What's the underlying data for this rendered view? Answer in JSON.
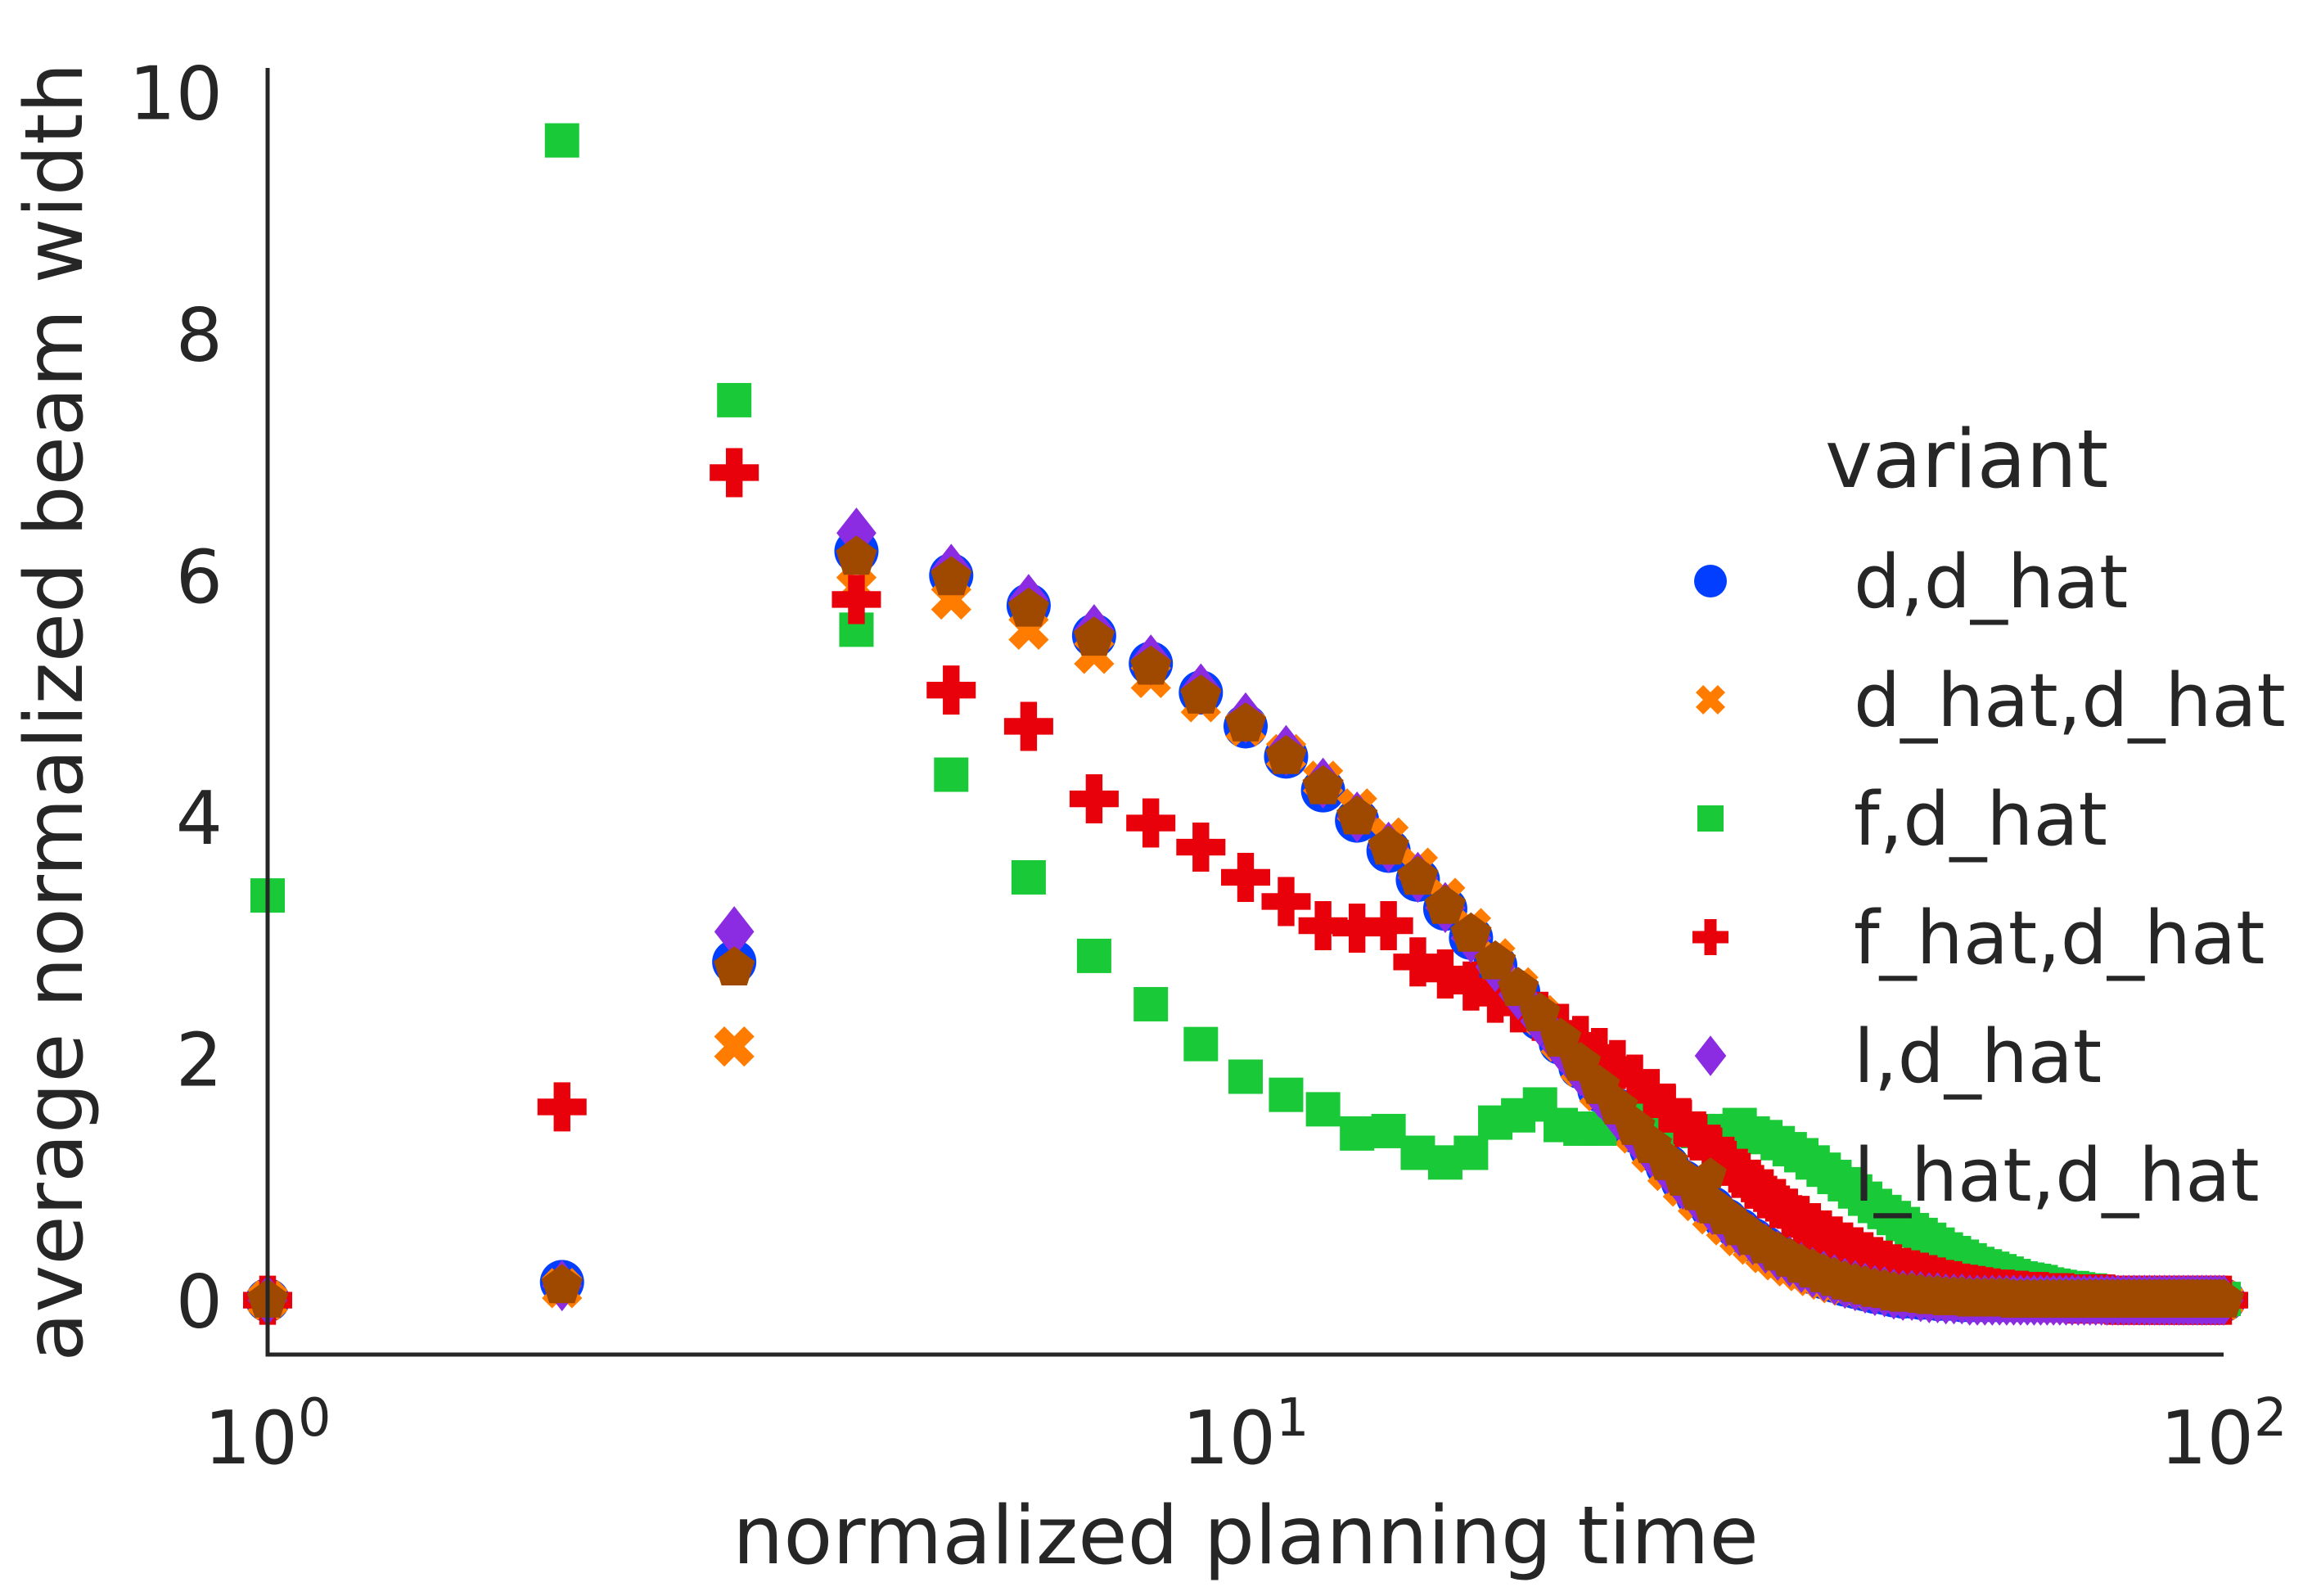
{
  "chart_data": {
    "type": "scatter",
    "xlabel": "normalized planning time",
    "ylabel": "average normalized beam width",
    "xscale": "log",
    "xlim": [
      1,
      100
    ],
    "ylim": [
      -0.45,
      10.2
    ],
    "x_ticks": [
      {
        "value": 1,
        "base": "10",
        "exp": "0"
      },
      {
        "value": 10,
        "base": "10",
        "exp": "1"
      },
      {
        "value": 100,
        "base": "10",
        "exp": "2"
      }
    ],
    "y_ticks": [
      0,
      2,
      4,
      6,
      8,
      10
    ],
    "grid": false,
    "legend": {
      "title": "variant",
      "placement": "right"
    },
    "x": [
      1,
      2,
      3,
      4,
      5,
      6,
      7,
      8,
      9,
      10,
      11,
      12,
      13,
      14,
      15,
      16,
      17,
      18,
      19,
      20,
      21,
      22,
      23,
      24,
      25,
      26,
      27,
      28,
      29,
      30,
      31,
      32,
      33,
      34,
      35,
      36,
      37,
      38,
      39,
      40,
      41,
      42,
      43,
      44,
      45,
      46,
      47,
      48,
      49,
      50,
      51,
      52,
      53,
      54,
      55,
      56,
      57,
      58,
      59,
      60,
      61,
      62,
      63,
      64,
      65,
      66,
      67,
      68,
      69,
      70,
      71,
      72,
      73,
      74,
      75,
      76,
      77,
      78,
      79,
      80,
      81,
      82,
      83,
      84,
      85,
      86,
      87,
      88,
      89,
      90,
      91,
      92,
      93,
      94,
      95,
      96,
      97,
      98,
      99,
      100
    ],
    "series": [
      {
        "name": "d,d_hat",
        "color": "#023eff",
        "marker": "circle",
        "values": [
          0.0,
          0.15,
          2.8,
          6.2,
          6.0,
          5.75,
          5.5,
          5.27,
          5.03,
          4.75,
          4.5,
          4.22,
          3.97,
          3.72,
          3.48,
          3.24,
          3.0,
          2.77,
          2.55,
          2.33,
          2.13,
          1.93,
          1.74,
          1.57,
          1.4,
          1.25,
          1.11,
          0.98,
          0.86,
          0.76,
          0.66,
          0.58,
          0.5,
          0.43,
          0.37,
          0.32,
          0.27,
          0.23,
          0.19,
          0.16,
          0.13,
          0.11,
          0.09,
          0.07,
          0.06,
          0.04,
          0.03,
          0.03,
          0.02,
          0.02,
          0.01,
          0.01,
          0.01,
          0.0,
          0.0,
          0.0,
          0.0,
          0.0,
          0.0,
          0.0,
          0.0,
          0.0,
          0.0,
          0.0,
          0.0,
          0.0,
          0.0,
          0.0,
          0.0,
          0.0,
          0.0,
          0.0,
          0.0,
          0.0,
          0.0,
          0.0,
          0.0,
          0.0,
          0.0,
          0.0,
          0.0,
          0.0,
          0.0,
          0.0,
          0.0,
          0.0,
          0.0,
          0.0,
          0.0,
          0.0,
          0.0,
          0.0,
          0.0,
          0.0,
          0.0,
          0.0,
          0.0,
          0.0,
          0.0,
          0.0
        ]
      },
      {
        "name": "d_hat,d_hat",
        "color": "#ff7c00",
        "marker": "x",
        "values": [
          0.0,
          0.1,
          2.1,
          5.9,
          5.8,
          5.55,
          5.35,
          5.15,
          4.95,
          4.75,
          4.52,
          4.3,
          4.07,
          3.83,
          3.58,
          3.33,
          3.08,
          2.83,
          2.59,
          2.36,
          2.14,
          1.93,
          1.73,
          1.55,
          1.38,
          1.22,
          1.07,
          0.94,
          0.82,
          0.71,
          0.62,
          0.53,
          0.46,
          0.39,
          0.33,
          0.28,
          0.24,
          0.2,
          0.17,
          0.14,
          0.12,
          0.1,
          0.08,
          0.06,
          0.05,
          0.04,
          0.03,
          0.03,
          0.02,
          0.02,
          0.01,
          0.01,
          0.01,
          0.0,
          0.0,
          0.0,
          0.0,
          0.0,
          0.0,
          0.0,
          0.0,
          0.0,
          0.0,
          0.0,
          0.0,
          0.0,
          0.0,
          0.0,
          0.0,
          0.0,
          0.0,
          0.0,
          0.0,
          0.0,
          0.0,
          0.0,
          0.0,
          0.0,
          0.0,
          0.0,
          0.0,
          0.0,
          0.0,
          0.0,
          0.0,
          0.0,
          0.0,
          0.0,
          0.0,
          0.0,
          0.0,
          0.0,
          0.0,
          0.0,
          0.0,
          0.0,
          0.0,
          0.0,
          0.0,
          0.0
        ]
      },
      {
        "name": "f,d_hat",
        "color": "#1ac938",
        "marker": "square",
        "values": [
          3.35,
          9.6,
          7.45,
          5.55,
          4.35,
          3.5,
          2.85,
          2.45,
          2.12,
          1.85,
          1.7,
          1.58,
          1.38,
          1.4,
          1.22,
          1.14,
          1.22,
          1.47,
          1.53,
          1.62,
          1.45,
          1.42,
          1.42,
          1.57,
          1.55,
          1.52,
          1.46,
          1.42,
          1.4,
          1.38,
          1.4,
          1.45,
          1.38,
          1.35,
          1.3,
          1.25,
          1.2,
          1.14,
          1.08,
          1.02,
          0.96,
          0.9,
          0.84,
          0.78,
          0.73,
          0.68,
          0.63,
          0.58,
          0.54,
          0.5,
          0.46,
          0.42,
          0.39,
          0.36,
          0.33,
          0.3,
          0.28,
          0.26,
          0.24,
          0.22,
          0.2,
          0.18,
          0.17,
          0.16,
          0.15,
          0.13,
          0.12,
          0.11,
          0.1,
          0.1,
          0.09,
          0.08,
          0.08,
          0.07,
          0.06,
          0.06,
          0.05,
          0.05,
          0.05,
          0.04,
          0.04,
          0.04,
          0.03,
          0.03,
          0.03,
          0.03,
          0.02,
          0.02,
          0.02,
          0.02,
          0.02,
          0.02,
          0.01,
          0.01,
          0.01,
          0.01,
          0.01,
          0.01,
          0.01,
          0.01
        ]
      },
      {
        "name": "f_hat,d_hat",
        "color": "#e8000b",
        "marker": "plus",
        "values": [
          0.0,
          1.6,
          6.85,
          5.8,
          5.05,
          4.75,
          4.15,
          3.95,
          3.75,
          3.5,
          3.3,
          3.1,
          3.08,
          3.1,
          2.8,
          2.7,
          2.6,
          2.5,
          2.42,
          2.35,
          2.25,
          2.15,
          2.05,
          1.95,
          1.83,
          1.71,
          1.59,
          1.47,
          1.36,
          1.25,
          1.15,
          1.05,
          0.96,
          0.88,
          0.8,
          0.72,
          0.66,
          0.6,
          0.54,
          0.49,
          0.44,
          0.4,
          0.36,
          0.32,
          0.29,
          0.26,
          0.23,
          0.21,
          0.19,
          0.17,
          0.15,
          0.13,
          0.12,
          0.1,
          0.09,
          0.08,
          0.07,
          0.06,
          0.05,
          0.05,
          0.04,
          0.04,
          0.03,
          0.03,
          0.03,
          0.02,
          0.02,
          0.02,
          0.02,
          0.01,
          0.01,
          0.01,
          0.01,
          0.01,
          0.01,
          0.01,
          0.0,
          0.0,
          0.0,
          0.0,
          0.0,
          0.0,
          0.0,
          0.0,
          0.0,
          0.0,
          0.0,
          0.0,
          0.0,
          0.0,
          0.0,
          0.0,
          0.0,
          0.0,
          0.0,
          0.0,
          0.0,
          0.0,
          0.0,
          0.0
        ]
      },
      {
        "name": "l,d_hat",
        "color": "#8b2be2",
        "marker": "diamond",
        "values": [
          0.0,
          0.12,
          3.05,
          6.35,
          6.05,
          5.8,
          5.55,
          5.3,
          5.06,
          4.82,
          4.55,
          4.28,
          4.0,
          3.75,
          3.5,
          3.25,
          3.0,
          2.76,
          2.53,
          2.31,
          2.1,
          1.9,
          1.72,
          1.54,
          1.38,
          1.23,
          1.09,
          0.96,
          0.85,
          0.75,
          0.65,
          0.57,
          0.5,
          0.43,
          0.37,
          0.32,
          0.27,
          0.23,
          0.2,
          0.17,
          0.14,
          0.12,
          0.1,
          0.08,
          0.07,
          0.05,
          0.04,
          0.04,
          0.03,
          0.02,
          0.02,
          0.01,
          0.01,
          0.01,
          0.0,
          0.0,
          0.0,
          0.0,
          0.0,
          0.0,
          0.0,
          0.0,
          0.0,
          0.0,
          0.0,
          0.0,
          0.0,
          0.0,
          0.0,
          0.0,
          0.0,
          0.0,
          0.0,
          0.0,
          0.0,
          0.0,
          0.0,
          0.0,
          0.0,
          0.0,
          0.0,
          0.0,
          0.0,
          0.0,
          0.0,
          0.0,
          0.0,
          0.0,
          0.0,
          0.0,
          0.0,
          0.0,
          0.0,
          0.0,
          0.0,
          0.0,
          0.0,
          0.0,
          0.0,
          0.0
        ]
      },
      {
        "name": "l_hat,d_hat",
        "color": "#9f4800",
        "marker": "pentagon",
        "values": [
          0.0,
          0.12,
          2.75,
          6.15,
          5.98,
          5.72,
          5.48,
          5.24,
          5.0,
          4.77,
          4.5,
          4.25,
          4.0,
          3.75,
          3.5,
          3.26,
          3.03,
          2.8,
          2.58,
          2.37,
          2.16,
          1.96,
          1.77,
          1.6,
          1.43,
          1.28,
          1.14,
          1.01,
          0.89,
          0.78,
          0.69,
          0.6,
          0.52,
          0.45,
          0.39,
          0.34,
          0.29,
          0.25,
          0.21,
          0.18,
          0.15,
          0.13,
          0.11,
          0.09,
          0.08,
          0.06,
          0.05,
          0.05,
          0.04,
          0.03,
          0.03,
          0.02,
          0.02,
          0.02,
          0.01,
          0.01,
          0.01,
          0.01,
          0.01,
          0.01,
          0.0,
          0.0,
          0.0,
          0.0,
          0.0,
          0.0,
          0.0,
          0.0,
          0.0,
          0.0,
          0.0,
          0.0,
          0.0,
          0.0,
          0.0,
          0.0,
          0.0,
          0.0,
          0.0,
          0.0,
          0.0,
          0.0,
          0.0,
          0.0,
          0.0,
          0.0,
          0.0,
          0.0,
          0.0,
          0.0,
          0.0,
          0.0,
          0.0,
          0.0,
          0.0,
          0.0,
          0.0,
          0.0,
          0.0,
          0.0
        ]
      }
    ]
  }
}
